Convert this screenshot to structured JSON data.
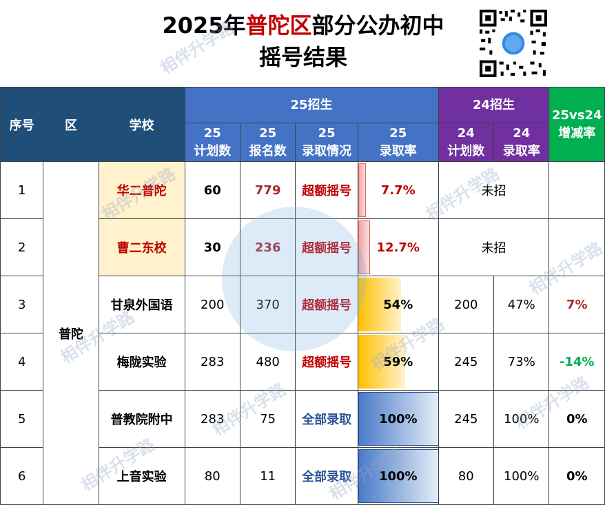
{
  "title": {
    "prefix": "2025年",
    "highlight": "普陀区",
    "suffix": "部分公办初中",
    "line2": "摇号结果"
  },
  "headers": {
    "index": "序号",
    "district": "区",
    "school": "学校",
    "group25": "25招生",
    "group24": "24招生",
    "compare_line1": "25vs24",
    "compare_line2": "增减率",
    "c25_plan": [
      "25",
      "计划数"
    ],
    "c25_apply": [
      "25",
      "报名数"
    ],
    "c25_status": [
      "25",
      "录取情况"
    ],
    "c25_rate": [
      "25",
      "录取率"
    ],
    "c24_plan": [
      "24",
      "计划数"
    ],
    "c24_rate": [
      "24",
      "录取率"
    ]
  },
  "district": "普陀",
  "rows": [
    {
      "index": "1",
      "school": "华二普陀",
      "plan25": "60",
      "apply25": "779",
      "status25": "超额摇号",
      "rate25": "7.7%",
      "rate25_value": 0.077,
      "plan24": "",
      "rate24": "",
      "merged24": "未招",
      "change": ""
    },
    {
      "index": "2",
      "school": "曹二东校",
      "plan25": "30",
      "apply25": "236",
      "status25": "超额摇号",
      "rate25": "12.7%",
      "rate25_value": 0.127,
      "plan24": "",
      "rate24": "",
      "merged24": "未招",
      "change": ""
    },
    {
      "index": "3",
      "school": "甘泉外国语",
      "plan25": "200",
      "apply25": "370",
      "status25": "超额摇号",
      "rate25": "54%",
      "rate25_value": 0.54,
      "plan24": "200",
      "rate24": "47%",
      "merged24": "",
      "change": "7%"
    },
    {
      "index": "4",
      "school": "梅陇实验",
      "plan25": "283",
      "apply25": "480",
      "status25": "超额摇号",
      "rate25": "59%",
      "rate25_value": 0.59,
      "plan24": "245",
      "rate24": "73%",
      "merged24": "",
      "change": "-14%"
    },
    {
      "index": "5",
      "school": "普教院附中",
      "plan25": "283",
      "apply25": "75",
      "status25": "全部录取",
      "rate25": "100%",
      "rate25_value": 1.0,
      "plan24": "245",
      "rate24": "100%",
      "merged24": "",
      "change": "0%"
    },
    {
      "index": "6",
      "school": "上音实验",
      "plan25": "80",
      "apply25": "11",
      "status25": "全部录取",
      "rate25": "100%",
      "rate25_value": 1.0,
      "plan24": "80",
      "rate24": "100%",
      "merged24": "",
      "change": "0%"
    }
  ],
  "watermark": "相伴升学路",
  "colors": {
    "header_dark": "#1f4e79",
    "header_blue": "#4472c4",
    "header_purple": "#7030a0",
    "header_green": "#00b050",
    "highlight_red": "#c00000",
    "increase": "#a52a2a",
    "decrease": "#00b050",
    "full_admit": "#2e5597"
  }
}
